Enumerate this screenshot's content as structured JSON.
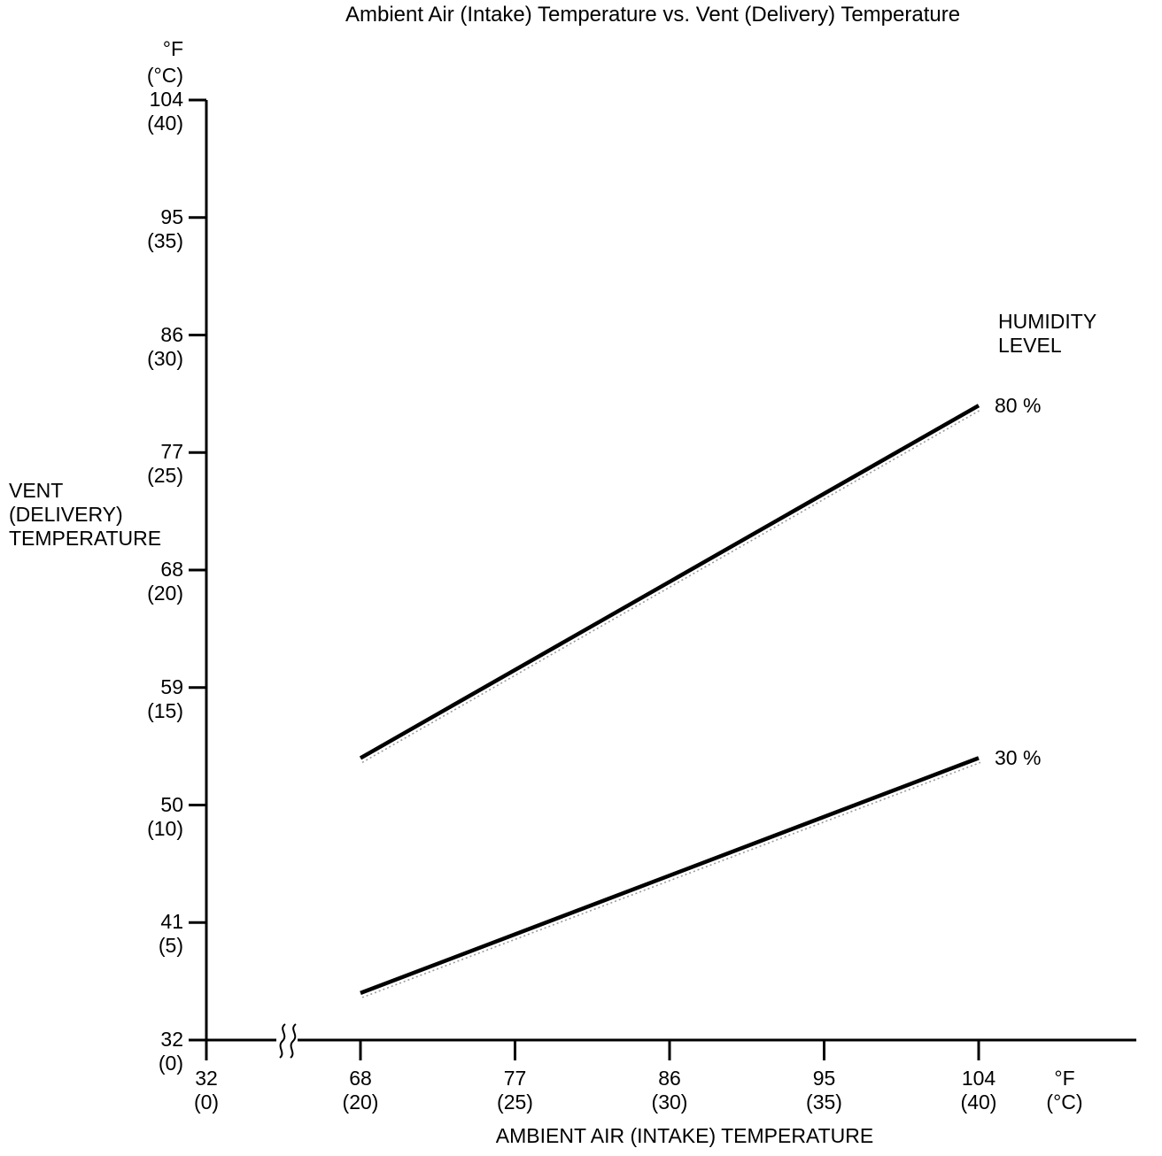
{
  "chart_data": {
    "type": "line",
    "title": "Ambient Air (Intake) Temperature vs. Vent (Delivery) Temperature",
    "x_axis": {
      "title": "AMBIENT AIR (INTAKE) TEMPERATURE",
      "unit_lines": [
        "°F",
        "(°C)"
      ],
      "range_f": [
        32,
        104
      ],
      "range_c": [
        0,
        40
      ],
      "has_break_between": [
        32,
        68
      ],
      "ticks": [
        {
          "f": 32,
          "c": 0
        },
        {
          "f": 68,
          "c": 20
        },
        {
          "f": 77,
          "c": 25
        },
        {
          "f": 86,
          "c": 30
        },
        {
          "f": 95,
          "c": 35
        },
        {
          "f": 104,
          "c": 40
        }
      ]
    },
    "y_axis": {
      "title_lines": [
        "VENT",
        "(DELIVERY)",
        "TEMPERATURE"
      ],
      "unit_lines": [
        "°F",
        "(°C)"
      ],
      "range_f": [
        32,
        104
      ],
      "range_c": [
        0,
        40
      ],
      "ticks": [
        {
          "f": 104,
          "c": 40
        },
        {
          "f": 95,
          "c": 35
        },
        {
          "f": 86,
          "c": 30
        },
        {
          "f": 77,
          "c": 25
        },
        {
          "f": 68,
          "c": 20
        },
        {
          "f": 59,
          "c": 15
        },
        {
          "f": 50,
          "c": 10
        },
        {
          "f": 41,
          "c": 5
        },
        {
          "f": 32,
          "c": 0
        }
      ]
    },
    "legend": {
      "title_lines": [
        "HUMIDITY",
        "LEVEL"
      ],
      "position": "right-of-line-ends"
    },
    "grid": false,
    "line_color": "#000000",
    "series": [
      {
        "label": "80 %",
        "points": [
          {
            "ambient_f": 68,
            "ambient_c": 20,
            "vent_f": 53.6,
            "vent_c": 12
          },
          {
            "ambient_f": 104,
            "ambient_c": 40,
            "vent_f": 80.6,
            "vent_c": 27
          }
        ]
      },
      {
        "label": "30 %",
        "points": [
          {
            "ambient_f": 68,
            "ambient_c": 20,
            "vent_f": 35.6,
            "vent_c": 2
          },
          {
            "ambient_f": 104,
            "ambient_c": 40,
            "vent_f": 53.6,
            "vent_c": 12
          }
        ]
      }
    ]
  }
}
